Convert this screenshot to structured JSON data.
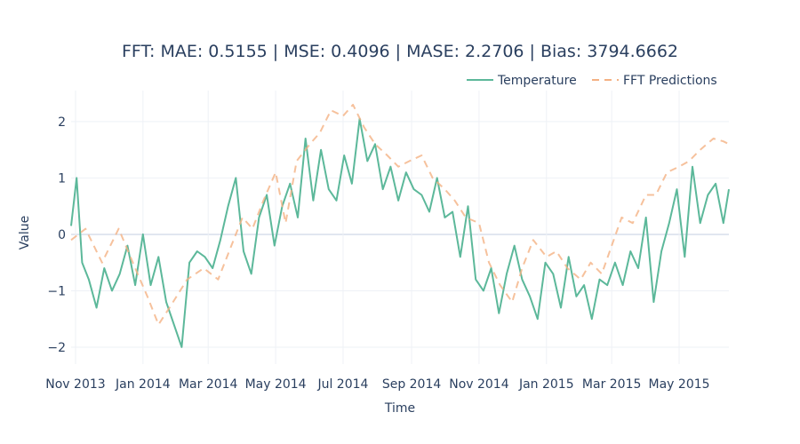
{
  "chart_data": {
    "type": "line",
    "title": "FFT: MAE: 0.5155 | MSE: 0.4096 | MASE: 2.2706 | Bias: 3794.6662",
    "xlabel": "Time",
    "ylabel": "Value",
    "x_range": [
      "2013-10-28",
      "2015-06-15"
    ],
    "ylim": [
      -2.3,
      2.55
    ],
    "y_ticks": [
      -2,
      -1,
      0,
      1,
      2
    ],
    "x_ticks": [
      {
        "date": "2013-11-01",
        "label": "Nov 2013"
      },
      {
        "date": "2014-01-01",
        "label": "Jan 2014"
      },
      {
        "date": "2014-03-01",
        "label": "Mar 2014"
      },
      {
        "date": "2014-05-01",
        "label": "May 2014"
      },
      {
        "date": "2014-07-01",
        "label": "Jul 2014"
      },
      {
        "date": "2014-09-01",
        "label": "Sep 2014"
      },
      {
        "date": "2014-11-01",
        "label": "Nov 2014"
      },
      {
        "date": "2015-01-01",
        "label": "Jan 2015"
      },
      {
        "date": "2015-03-01",
        "label": "Mar 2015"
      },
      {
        "date": "2015-05-01",
        "label": "May 2015"
      }
    ],
    "grid": true,
    "legend_position": "top-right",
    "series": [
      {
        "name": "Temperature",
        "color": "#5cb89a",
        "dash": "solid",
        "x": [
          "2013-10-28",
          "2013-11-02",
          "2013-11-07",
          "2013-11-13",
          "2013-11-20",
          "2013-11-27",
          "2013-12-04",
          "2013-12-11",
          "2013-12-18",
          "2013-12-25",
          "2014-01-01",
          "2014-01-08",
          "2014-01-15",
          "2014-01-22",
          "2014-01-29",
          "2014-02-05",
          "2014-02-12",
          "2014-02-19",
          "2014-02-26",
          "2014-03-05",
          "2014-03-12",
          "2014-03-19",
          "2014-03-26",
          "2014-04-02",
          "2014-04-09",
          "2014-04-16",
          "2014-04-23",
          "2014-04-30",
          "2014-05-07",
          "2014-05-14",
          "2014-05-21",
          "2014-05-28",
          "2014-06-04",
          "2014-06-11",
          "2014-06-18",
          "2014-06-25",
          "2014-07-02",
          "2014-07-09",
          "2014-07-16",
          "2014-07-23",
          "2014-07-30",
          "2014-08-06",
          "2014-08-13",
          "2014-08-20",
          "2014-08-27",
          "2014-09-03",
          "2014-09-10",
          "2014-09-17",
          "2014-09-24",
          "2014-10-01",
          "2014-10-08",
          "2014-10-15",
          "2014-10-22",
          "2014-10-29",
          "2014-11-05",
          "2014-11-12",
          "2014-11-19",
          "2014-11-26",
          "2014-12-03",
          "2014-12-10",
          "2014-12-17",
          "2014-12-24",
          "2014-12-31",
          "2015-01-07",
          "2015-01-14",
          "2015-01-21",
          "2015-01-28",
          "2015-02-04",
          "2015-02-11",
          "2015-02-18",
          "2015-02-25",
          "2015-03-04",
          "2015-03-11",
          "2015-03-18",
          "2015-03-25",
          "2015-04-01",
          "2015-04-08",
          "2015-04-15",
          "2015-04-22",
          "2015-04-29",
          "2015-05-06",
          "2015-05-13",
          "2015-05-20",
          "2015-05-27",
          "2015-06-03",
          "2015-06-10",
          "2015-06-15"
        ],
        "y": [
          0.15,
          1.0,
          -0.5,
          -0.8,
          -1.3,
          -0.6,
          -1.0,
          -0.7,
          -0.2,
          -0.9,
          0.0,
          -0.9,
          -0.4,
          -1.2,
          -1.6,
          -2.0,
          -0.5,
          -0.3,
          -0.4,
          -0.6,
          -0.1,
          0.5,
          1.0,
          -0.3,
          -0.7,
          0.3,
          0.7,
          -0.2,
          0.5,
          0.9,
          0.3,
          1.7,
          0.6,
          1.5,
          0.8,
          0.6,
          1.4,
          0.9,
          2.05,
          1.3,
          1.6,
          0.8,
          1.2,
          0.6,
          1.1,
          0.8,
          0.7,
          0.4,
          1.0,
          0.3,
          0.4,
          -0.4,
          0.5,
          -0.8,
          -1.0,
          -0.6,
          -1.4,
          -0.7,
          -0.2,
          -0.8,
          -1.1,
          -1.5,
          -0.5,
          -0.7,
          -1.3,
          -0.4,
          -1.1,
          -0.9,
          -1.5,
          -0.8,
          -0.9,
          -0.5,
          -0.9,
          -0.3,
          -0.6,
          0.3,
          -1.2,
          -0.3,
          0.2,
          0.8,
          -0.4,
          1.2,
          0.2,
          0.7,
          0.9,
          0.2,
          0.8
        ]
      },
      {
        "name": "FFT Predictions",
        "color": "#f4b183",
        "dash": "dashed",
        "x": [
          "2013-10-28",
          "2013-11-10",
          "2013-11-25",
          "2013-12-10",
          "2013-12-25",
          "2014-01-05",
          "2014-01-15",
          "2014-01-25",
          "2014-02-10",
          "2014-02-25",
          "2014-03-10",
          "2014-03-20",
          "2014-04-01",
          "2014-04-10",
          "2014-04-20",
          "2014-05-01",
          "2014-05-10",
          "2014-05-20",
          "2014-06-01",
          "2014-06-10",
          "2014-06-20",
          "2014-07-01",
          "2014-07-10",
          "2014-07-20",
          "2014-07-30",
          "2014-08-10",
          "2014-08-20",
          "2014-08-30",
          "2014-09-10",
          "2014-09-20",
          "2014-10-01",
          "2014-10-10",
          "2014-10-20",
          "2014-11-01",
          "2014-11-10",
          "2014-11-20",
          "2014-12-01",
          "2014-12-10",
          "2014-12-20",
          "2015-01-01",
          "2015-01-10",
          "2015-01-20",
          "2015-02-01",
          "2015-02-10",
          "2015-02-20",
          "2015-03-01",
          "2015-03-10",
          "2015-03-20",
          "2015-04-01",
          "2015-04-10",
          "2015-04-20",
          "2015-05-01",
          "2015-05-10",
          "2015-05-20",
          "2015-06-01",
          "2015-06-10",
          "2015-06-15"
        ],
        "y": [
          -0.1,
          0.1,
          -0.5,
          0.1,
          -0.6,
          -1.1,
          -1.6,
          -1.3,
          -0.8,
          -0.6,
          -0.8,
          -0.3,
          0.3,
          0.1,
          0.6,
          1.1,
          0.2,
          1.3,
          1.6,
          1.8,
          2.2,
          2.1,
          2.3,
          1.9,
          1.6,
          1.4,
          1.2,
          1.3,
          1.4,
          1.0,
          0.8,
          0.6,
          0.3,
          0.2,
          -0.5,
          -0.9,
          -1.2,
          -0.6,
          -0.1,
          -0.4,
          -0.3,
          -0.6,
          -0.8,
          -0.5,
          -0.7,
          -0.2,
          0.3,
          0.2,
          0.7,
          0.7,
          1.1,
          1.2,
          1.3,
          1.5,
          1.7,
          1.65,
          1.6
        ]
      }
    ]
  }
}
